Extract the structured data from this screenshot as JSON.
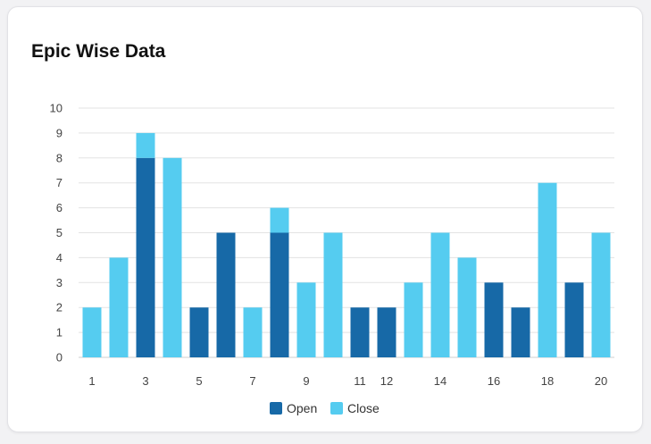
{
  "card": {
    "title": "Epic Wise Data"
  },
  "colors": {
    "open": "#1769a7",
    "close": "#55ccf0",
    "grid": "#e3e3e3",
    "axis": "#cfcfcf"
  },
  "chart_data": {
    "type": "bar",
    "stacked": true,
    "title": "Epic Wise Data",
    "xlabel": "",
    "ylabel": "",
    "ylim": [
      0,
      10
    ],
    "yticks": [
      0,
      1,
      2,
      3,
      4,
      5,
      6,
      7,
      8,
      9,
      10
    ],
    "categories": [
      "1",
      "2",
      "3",
      "4",
      "5",
      "6",
      "7",
      "8",
      "9",
      "10",
      "11",
      "12",
      "13",
      "14",
      "15",
      "16",
      "17",
      "18",
      "19",
      "20"
    ],
    "x_tick_labels": [
      "1",
      "3",
      "5",
      "7",
      "9",
      "11",
      "12",
      "14",
      "16",
      "18",
      "20"
    ],
    "series": [
      {
        "name": "Open",
        "values": [
          0,
          0,
          8,
          0,
          2,
          5,
          0,
          5,
          0,
          0,
          2,
          2,
          0,
          0,
          0,
          3,
          2,
          0,
          3,
          0
        ]
      },
      {
        "name": "Close",
        "values": [
          2,
          4,
          1,
          8,
          0,
          0,
          2,
          1,
          3,
          5,
          0,
          0,
          3,
          5,
          4,
          0,
          0,
          7,
          0,
          5
        ]
      }
    ],
    "grid": true,
    "legend": "bottom-center"
  }
}
